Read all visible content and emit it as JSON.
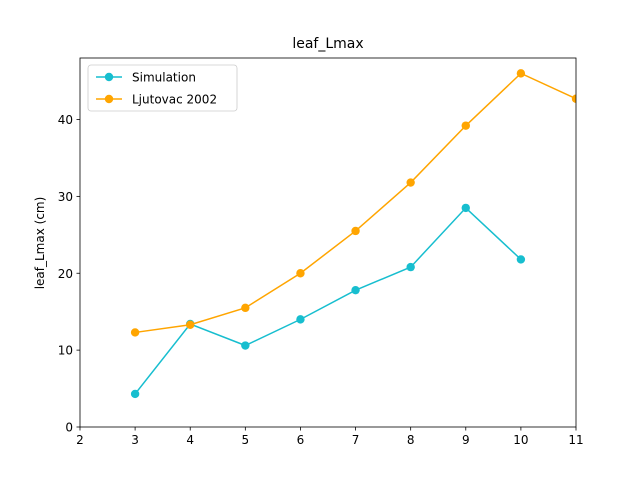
{
  "chart_data": {
    "type": "line",
    "title": "leaf_Lmax",
    "xlabel": "",
    "ylabel": "leaf_Lmax (cm)",
    "xlim": [
      2,
      11
    ],
    "ylim": [
      0,
      48
    ],
    "xticks": [
      2,
      3,
      4,
      5,
      6,
      7,
      8,
      9,
      10,
      11
    ],
    "yticks": [
      0,
      10,
      20,
      30,
      40
    ],
    "grid": false,
    "legend_position": "upper-left",
    "series": [
      {
        "name": "Simulation",
        "color": "#17becf",
        "x": [
          3,
          4,
          5,
          6,
          7,
          8,
          9,
          10
        ],
        "y": [
          4.3,
          13.4,
          10.6,
          14.0,
          17.8,
          20.8,
          28.5,
          21.8
        ]
      },
      {
        "name": "Ljutovac 2002",
        "color": "#ffa500",
        "x": [
          3,
          4,
          5,
          6,
          7,
          8,
          9,
          10,
          11
        ],
        "y": [
          12.3,
          13.3,
          15.5,
          20.0,
          25.5,
          31.8,
          39.2,
          46.0,
          42.7
        ]
      }
    ]
  }
}
